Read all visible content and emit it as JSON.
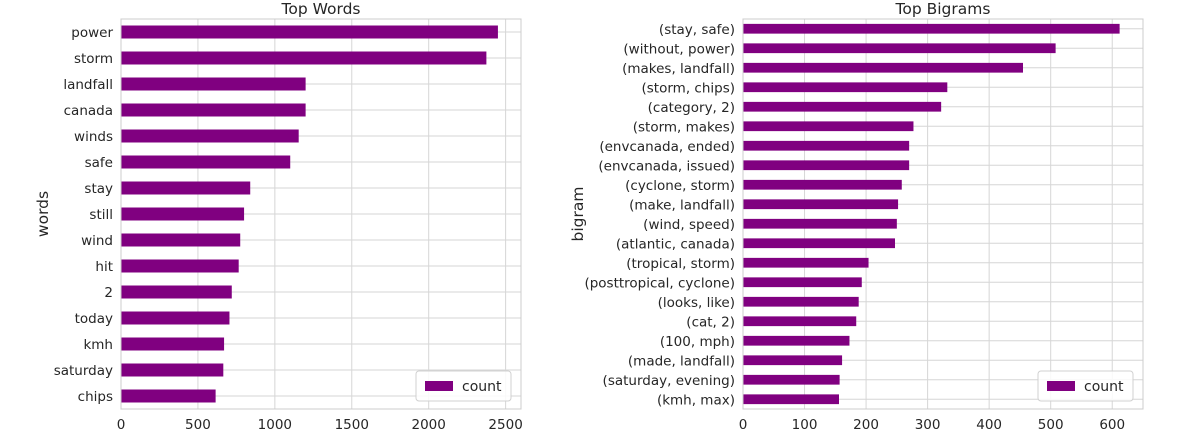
{
  "chart_data": [
    {
      "type": "bar",
      "orientation": "horizontal",
      "title": "Top Words",
      "ylabel": "words",
      "xlabel": "",
      "categories": [
        "power",
        "storm",
        "landfall",
        "canada",
        "winds",
        "safe",
        "stay",
        "still",
        "wind",
        "hit",
        "2",
        "today",
        "kmh",
        "saturday",
        "chips"
      ],
      "series": [
        {
          "name": "count",
          "values": [
            2450,
            2375,
            1200,
            1200,
            1155,
            1100,
            840,
            800,
            775,
            765,
            720,
            705,
            670,
            665,
            615
          ]
        }
      ],
      "xlim": [
        0,
        2600
      ],
      "xticks": [
        0,
        500,
        1000,
        1500,
        2000,
        2500
      ],
      "grid": true,
      "legend": "lower-right",
      "bar_color": "#800080"
    },
    {
      "type": "bar",
      "orientation": "horizontal",
      "title": "Top Bigrams",
      "ylabel": "bigram",
      "xlabel": "",
      "categories": [
        "(stay, safe)",
        "(without, power)",
        "(makes, landfall)",
        "(storm, chips)",
        "(category, 2)",
        "(storm, makes)",
        "(envcanada, ended)",
        "(envcanada, issued)",
        "(cyclone, storm)",
        "(make, landfall)",
        "(wind, speed)",
        "(atlantic, canada)",
        "(tropical, storm)",
        "(posttropical, cyclone)",
        "(looks, like)",
        "(cat, 2)",
        "(100, mph)",
        "(made, landfall)",
        "(saturday, evening)",
        "(kmh, max)"
      ],
      "series": [
        {
          "name": "count",
          "values": [
            612,
            508,
            455,
            332,
            322,
            277,
            270,
            270,
            258,
            252,
            250,
            247,
            204,
            193,
            188,
            184,
            173,
            161,
            157,
            156
          ]
        }
      ],
      "xlim": [
        0,
        650
      ],
      "xticks": [
        0,
        100,
        200,
        300,
        400,
        500,
        600
      ],
      "grid": true,
      "legend": "lower-right",
      "bar_color": "#800080"
    }
  ]
}
